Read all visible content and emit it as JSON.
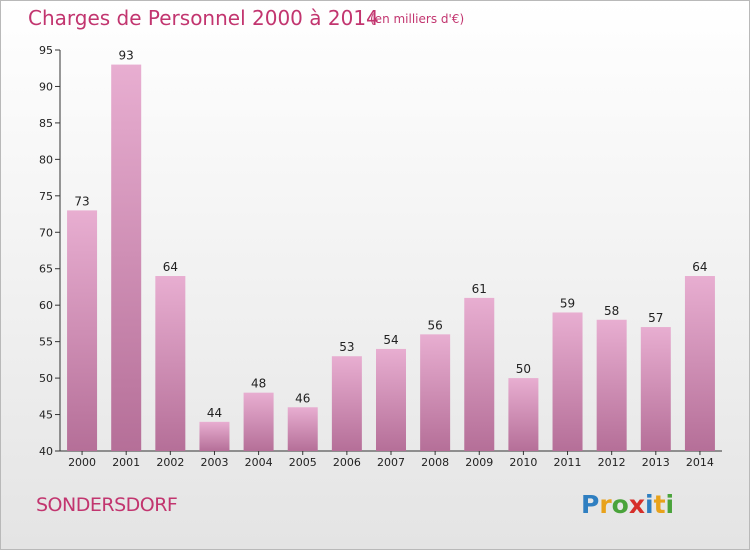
{
  "header": {
    "title": "Charges de Personnel 2000 à 2014",
    "subtitle": "(en milliers d'€)"
  },
  "footer": {
    "commune": "SONDERSDORF",
    "logo_text": "Proxiti"
  },
  "colors": {
    "accent": "#c2356f",
    "bar_top": "#e8aed1",
    "bar_bottom": "#b56f98"
  },
  "chart_data": {
    "type": "bar",
    "categories": [
      "2000",
      "2001",
      "2002",
      "2003",
      "2004",
      "2005",
      "2006",
      "2007",
      "2008",
      "2009",
      "2010",
      "2011",
      "2012",
      "2013",
      "2014"
    ],
    "values": [
      73,
      93,
      64,
      44,
      48,
      46,
      53,
      54,
      56,
      61,
      50,
      59,
      58,
      57,
      64
    ],
    "title": "Charges de Personnel 2000 à 2014",
    "subtitle": "(en milliers d'€)",
    "ylim": [
      40,
      95
    ],
    "yticks": [
      40,
      45,
      50,
      55,
      60,
      65,
      70,
      75,
      80,
      85,
      90,
      95
    ],
    "grid": false,
    "legend": "none"
  }
}
